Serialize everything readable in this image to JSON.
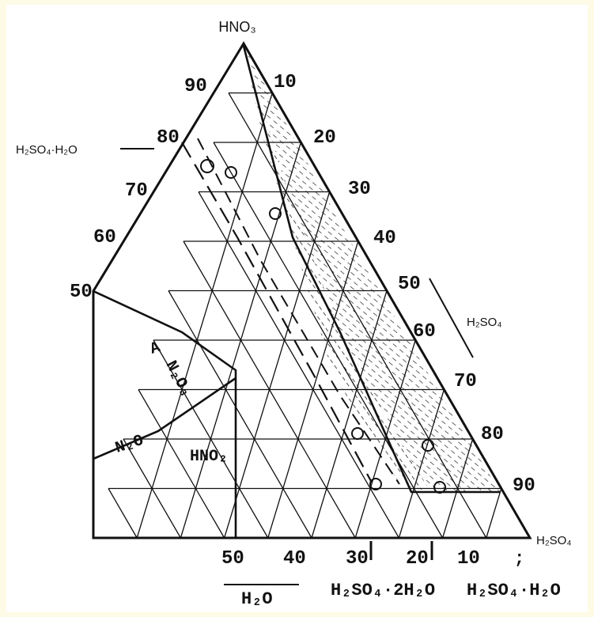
{
  "diagram": {
    "apex_top": "HNO₃",
    "apex_right": "H₂SO₄",
    "side_left_label": "H₂SO₄·H₂O",
    "side_right_label": "H₂SO₄",
    "left_ticks": [
      "90",
      "80",
      "70",
      "60",
      "50"
    ],
    "right_ticks": [
      "10",
      "20",
      "30",
      "40",
      "50",
      "60",
      "70",
      "80",
      "90"
    ],
    "bottom_ticks": [
      "50",
      "40",
      "30",
      "20",
      "10"
    ],
    "bottom_arrow_mark": ";",
    "bottom_axis_label": "H₂O",
    "bottom_hydrate_1": "H₂SO₄·2H₂O",
    "bottom_hydrate_2": "H₂SO₄·H₂O",
    "region_label_a": "A",
    "region_label_n2o3": "N₂O₃",
    "region_label_n2o": "N₂O",
    "region_label_hno2": "HNO₂",
    "colors": {
      "background": "#fdfbe6",
      "panel": "#ffffff",
      "ink": "#111111"
    }
  }
}
